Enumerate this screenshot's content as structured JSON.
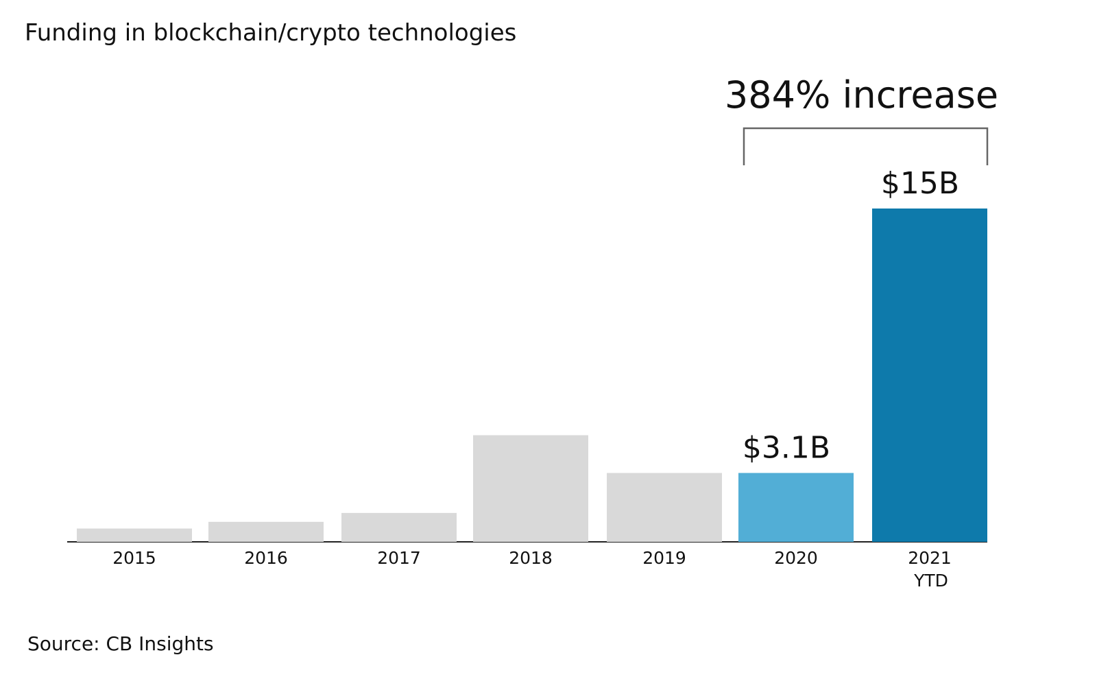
{
  "title": "Funding in blockchain/crypto technologies",
  "source": "Source: CB Insights",
  "annotation": "384% increase",
  "colors": {
    "default_bar": "#d9d9d9",
    "highlight_2020": "#52aed6",
    "highlight_2021": "#0e7aab",
    "axis": "#222222",
    "bracket": "#666666",
    "text": "#111111"
  },
  "chart_data": {
    "type": "bar",
    "title": "Funding in blockchain/crypto technologies",
    "categories": [
      "2015",
      "2016",
      "2017",
      "2018",
      "2019",
      "2020",
      "2021\nYTD"
    ],
    "category_labels": [
      [
        "2015"
      ],
      [
        "2016"
      ],
      [
        "2017"
      ],
      [
        "2018"
      ],
      [
        "2019"
      ],
      [
        "2020"
      ],
      [
        "2021",
        "YTD"
      ]
    ],
    "values": [
      0.6,
      0.9,
      1.3,
      4.8,
      3.1,
      3.1,
      15
    ],
    "data_labels": [
      "",
      "",
      "",
      "",
      "",
      "$3.1B",
      "$15B"
    ],
    "xlabel": "",
    "ylabel": "",
    "ylim": [
      0,
      15
    ],
    "grid": false,
    "legend": "none",
    "unit": "$B"
  }
}
